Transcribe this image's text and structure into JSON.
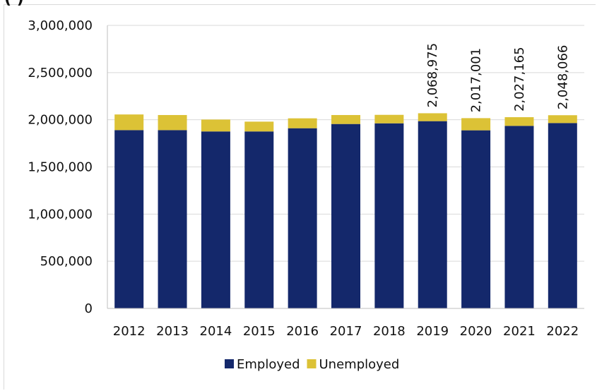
{
  "title_fragment": "(                                    )",
  "chart_data": {
    "type": "bar",
    "stacked": true,
    "categories": [
      "2012",
      "2013",
      "2014",
      "2015",
      "2016",
      "2017",
      "2018",
      "2019",
      "2020",
      "2021",
      "2022"
    ],
    "series": [
      {
        "name": "Employed",
        "color": "#14286b",
        "values": [
          1890000,
          1890000,
          1876000,
          1876000,
          1910000,
          1955000,
          1962000,
          1985000,
          1888000,
          1935000,
          1965000
        ]
      },
      {
        "name": "Unemployed",
        "color": "#dcc236",
        "values": [
          166000,
          160000,
          126000,
          104000,
          105000,
          95000,
          90000,
          83975,
          129001,
          92165,
          83066
        ]
      }
    ],
    "data_labels": [
      "",
      "",
      "",
      "",
      "",
      "",
      "",
      "2,068,975",
      "2,017,001",
      "2,027,165",
      "2,048,066"
    ],
    "ylim": [
      0,
      3000000
    ],
    "yticks": [
      "0",
      "500,000",
      "1,000,000",
      "1,500,000",
      "2,000,000",
      "2,500,000",
      "3,000,000"
    ],
    "grid": true,
    "legend_position": "bottom"
  }
}
